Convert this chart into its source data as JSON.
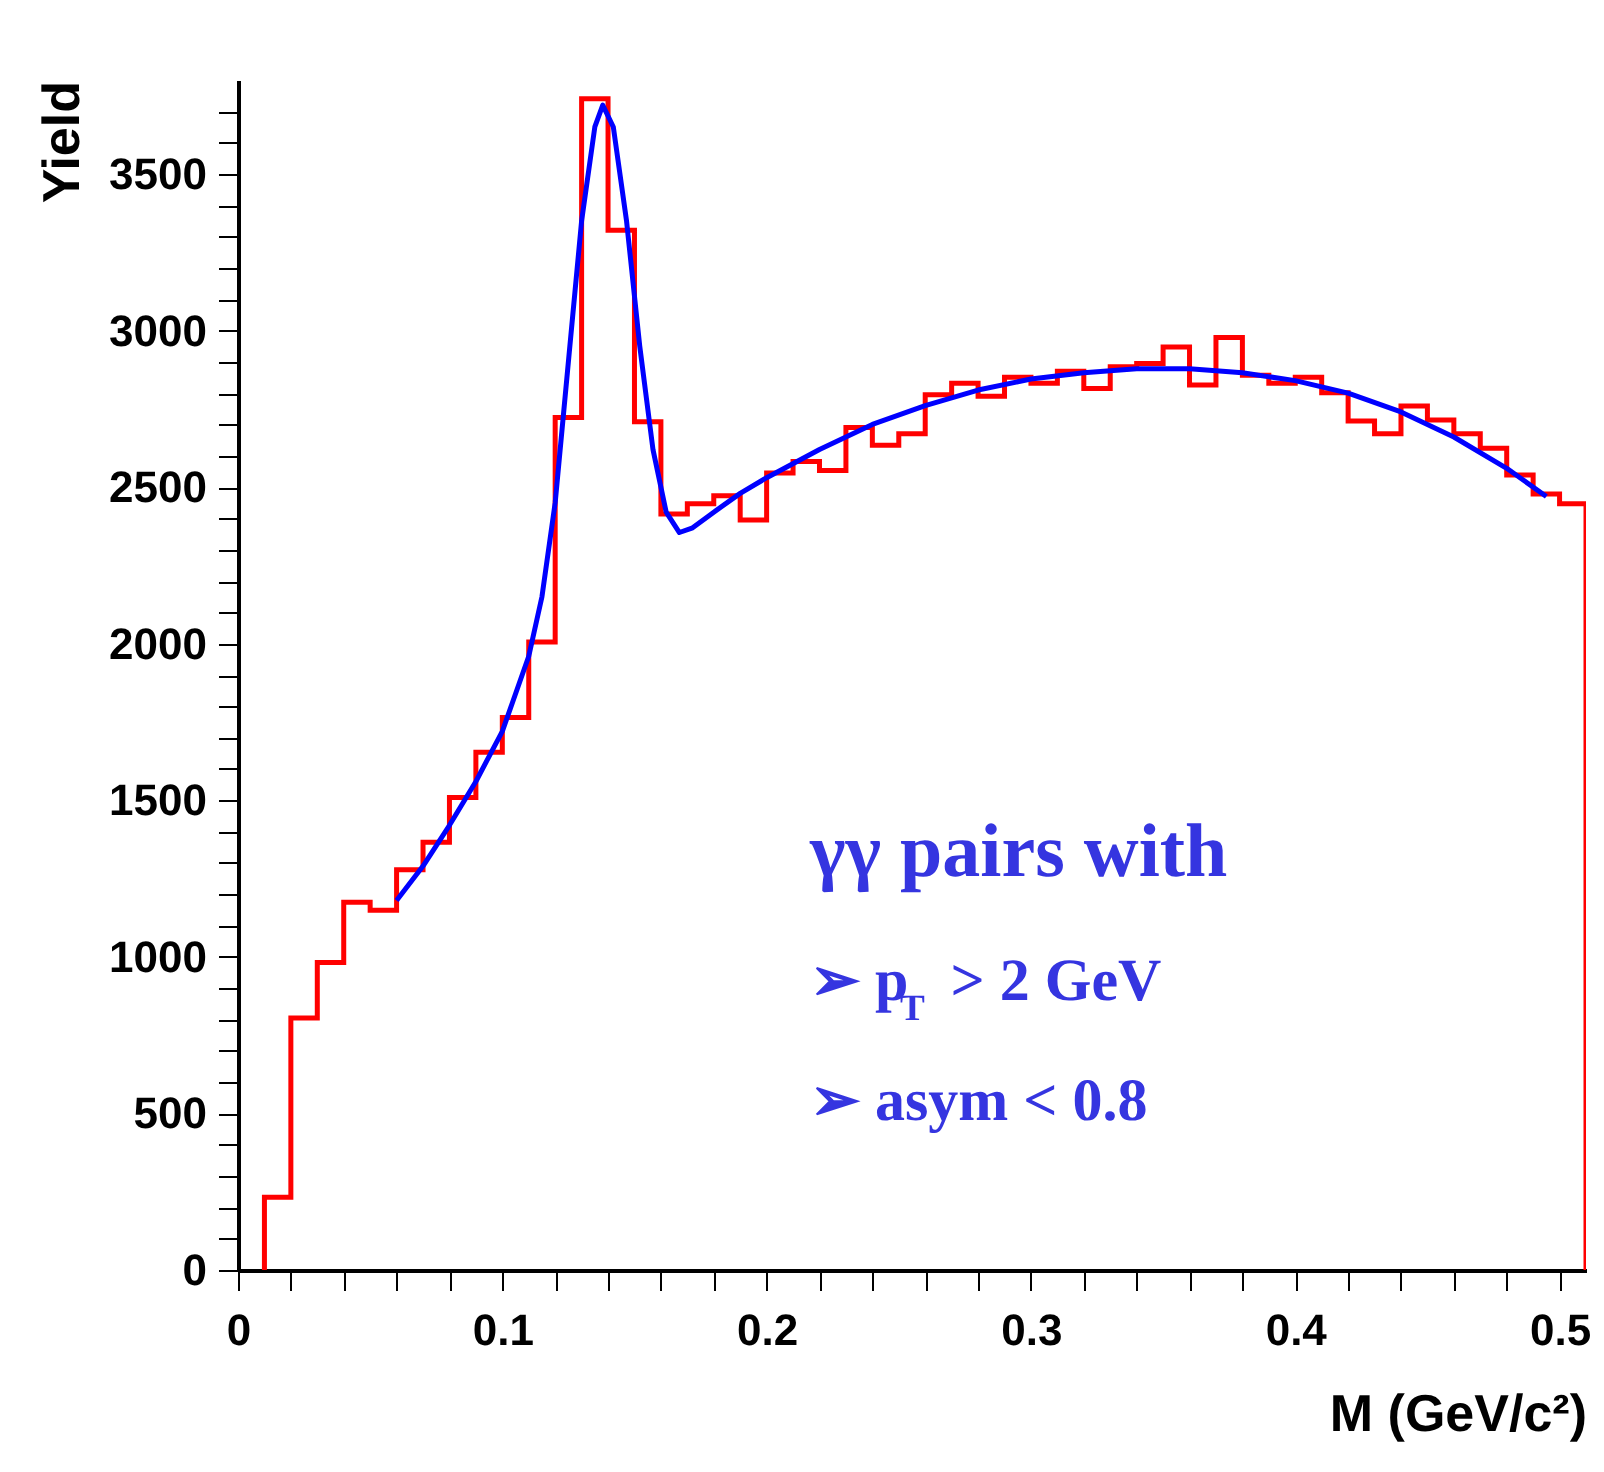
{
  "chart_data": {
    "type": "histogram",
    "xlabel": "M (GeV/c²)",
    "ylabel": "Yield",
    "bins": [
      0.01,
      0.02,
      0.03,
      0.04,
      0.05,
      0.06,
      0.07,
      0.08,
      0.09,
      0.1,
      0.11,
      0.12,
      0.13,
      0.14,
      0.15,
      0.16,
      0.17,
      0.18,
      0.19,
      0.2,
      0.21,
      0.22,
      0.23,
      0.24,
      0.25,
      0.26,
      0.27,
      0.28,
      0.29,
      0.3,
      0.31,
      0.32,
      0.33,
      0.34,
      0.35,
      0.36,
      0.37,
      0.38,
      0.39,
      0.4,
      0.41,
      0.42,
      0.43,
      0.44,
      0.45,
      0.46,
      0.47,
      0.48,
      0.49,
      0.5,
      0.51
    ],
    "series": [
      {
        "type": "histogram",
        "color": "#ff0000",
        "values": [
          232,
          805,
          982,
          1174,
          1149,
          1278,
          1366,
          1509,
          1653,
          1764,
          2005,
          2722,
          3740,
          3320,
          2709,
          2414,
          2447,
          2472,
          2395,
          2545,
          2582,
          2553,
          2690,
          2634,
          2670,
          2795,
          2832,
          2790,
          2851,
          2832,
          2870,
          2815,
          2884,
          2895,
          2947,
          2826,
          2978,
          2857,
          2832,
          2851,
          2801,
          2711,
          2670,
          2759,
          2714,
          2670,
          2624,
          2539,
          2478,
          2447
        ]
      },
      {
        "type": "line",
        "color": "#0000ff",
        "x": [
          0.06,
          0.07,
          0.08,
          0.09,
          0.1,
          0.11,
          0.115,
          0.12,
          0.125,
          0.13,
          0.135,
          0.138,
          0.142,
          0.147,
          0.152,
          0.157,
          0.162,
          0.167,
          0.172,
          0.18,
          0.19,
          0.2,
          0.22,
          0.24,
          0.26,
          0.28,
          0.3,
          0.32,
          0.34,
          0.36,
          0.38,
          0.4,
          0.42,
          0.44,
          0.46,
          0.48,
          0.495
        ],
        "values": [
          1180,
          1290,
          1420,
          1560,
          1720,
          1960,
          2150,
          2450,
          2900,
          3350,
          3650,
          3720,
          3650,
          3350,
          2950,
          2620,
          2420,
          2355,
          2370,
          2420,
          2480,
          2530,
          2620,
          2700,
          2760,
          2810,
          2845,
          2865,
          2878,
          2878,
          2865,
          2840,
          2800,
          2740,
          2660,
          2560,
          2470
        ]
      }
    ],
    "xlim": [
      0,
      0.51
    ],
    "xticks": [
      0,
      {
        "value": 0.02,
        "label": null
      },
      {
        "value": 0.04,
        "label": null
      },
      {
        "value": 0.06,
        "label": null
      },
      {
        "value": 0.08,
        "label": null
      },
      {
        "value": 0.1,
        "label": "0.1"
      },
      {
        "value": 0.12,
        "label": null
      },
      {
        "value": 0.14,
        "label": null
      },
      {
        "value": 0.16,
        "label": null
      },
      {
        "value": 0.18,
        "label": null
      },
      {
        "value": 0.2,
        "label": "0.2"
      },
      {
        "value": 0.22,
        "label": null
      },
      {
        "value": 0.24,
        "label": null
      },
      {
        "value": 0.26,
        "label": null
      },
      {
        "value": 0.28,
        "label": null
      },
      {
        "value": 0.3,
        "label": "0.3"
      },
      {
        "value": 0.32,
        "label": null
      },
      {
        "value": 0.34,
        "label": null
      },
      {
        "value": 0.36,
        "label": null
      },
      {
        "value": 0.38,
        "label": null
      },
      {
        "value": 0.4,
        "label": "0.4"
      },
      {
        "value": 0.42,
        "label": null
      },
      {
        "value": 0.44,
        "label": null
      },
      {
        "value": 0.46,
        "label": null
      },
      {
        "value": 0.48,
        "label": null
      },
      {
        "value": 0.5,
        "label": "0.5"
      }
    ],
    "ylim": [
      0,
      3800
    ],
    "yticks": [
      0,
      {
        "value": 100,
        "label": null
      },
      {
        "value": 200,
        "label": null
      },
      {
        "value": 300,
        "label": null
      },
      {
        "value": 400,
        "label": null
      },
      500,
      {
        "value": 600,
        "label": null
      },
      {
        "value": 700,
        "label": null
      },
      {
        "value": 800,
        "label": null
      },
      {
        "value": 900,
        "label": null
      },
      1000,
      {
        "value": 1100,
        "label": null
      },
      {
        "value": 1200,
        "label": null
      },
      {
        "value": 1300,
        "label": null
      },
      {
        "value": 1400,
        "label": null
      },
      1500,
      {
        "value": 1600,
        "label": null
      },
      {
        "value": 1700,
        "label": null
      },
      {
        "value": 1800,
        "label": null
      },
      {
        "value": 1900,
        "label": null
      },
      2000,
      {
        "value": 2100,
        "label": null
      },
      {
        "value": 2200,
        "label": null
      },
      {
        "value": 2300,
        "label": null
      },
      {
        "value": 2400,
        "label": null
      },
      2500,
      {
        "value": 2600,
        "label": null
      },
      {
        "value": 2700,
        "label": null
      },
      {
        "value": 2800,
        "label": null
      },
      {
        "value": 2900,
        "label": null
      },
      3000,
      {
        "value": 3100,
        "label": null
      },
      {
        "value": 3200,
        "label": null
      },
      {
        "value": 3300,
        "label": null
      },
      {
        "value": 3400,
        "label": null
      },
      3500,
      {
        "value": 3600,
        "label": null
      },
      {
        "value": 3700,
        "label": null
      }
    ],
    "annotations": [
      "γγ pairs with",
      "➢ p$_{T}$ > 2 GeV",
      "➢ asym < 0.8"
    ],
    "grid": false
  }
}
